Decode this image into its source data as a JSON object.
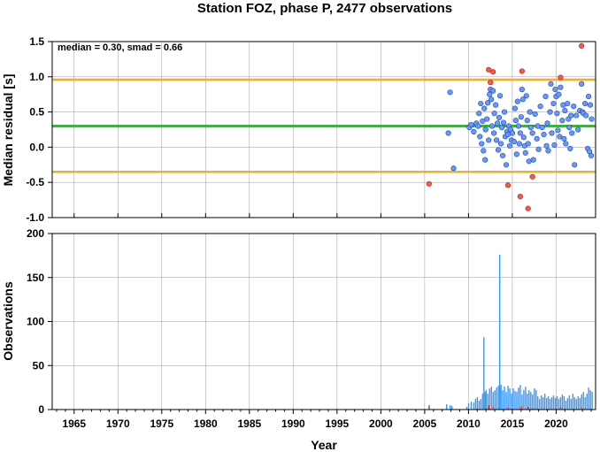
{
  "chart_data": {
    "title": "Station FOZ, phase P, 2477 observations",
    "xlabel": "Year",
    "xlim": [
      1962.5,
      2024.5
    ],
    "xticks": [
      1965,
      1970,
      1975,
      1980,
      1985,
      1990,
      1995,
      2000,
      2005,
      2010,
      2015,
      2020
    ],
    "grid": true,
    "colors": {
      "inlier": "#6699ff",
      "outlier": "#ff5544",
      "median": "#00dd00",
      "bounds": "#ffaa22",
      "bars": "#3399ff",
      "bars_outlier": "#ff3333"
    },
    "panels": [
      {
        "type": "scatter",
        "ylabel": "Median residual [s]",
        "ylim": [
          -1.0,
          1.5
        ],
        "yticks": [
          "-1.0",
          "-0.5",
          "0.0",
          "0.5",
          "1.0",
          "1.5"
        ],
        "annotation": "median = 0.30, smad = 0.66",
        "median": 0.3,
        "bounds": [
          -0.35,
          0.96
        ],
        "inliers": [
          [
            2007.7,
            0.2
          ],
          [
            2007.9,
            0.78
          ],
          [
            2008.3,
            -0.3
          ],
          [
            2010.1,
            0.28
          ],
          [
            2010.3,
            0.32
          ],
          [
            2010.6,
            0.22
          ],
          [
            2010.9,
            0.34
          ],
          [
            2011.1,
            0.3
          ],
          [
            2011.2,
            0.48
          ],
          [
            2011.3,
            0.15
          ],
          [
            2011.4,
            0.62
          ],
          [
            2011.5,
            0.05
          ],
          [
            2011.6,
            0.37
          ],
          [
            2011.7,
            -0.05
          ],
          [
            2011.8,
            0.55
          ],
          [
            2011.9,
            -0.18
          ],
          [
            2011.95,
            0.25
          ],
          [
            2012.1,
            0.4
          ],
          [
            2012.2,
            0.63
          ],
          [
            2012.3,
            0.1
          ],
          [
            2012.4,
            0.75
          ],
          [
            2012.5,
            0.82
          ],
          [
            2012.6,
            0.68
          ],
          [
            2012.7,
            0.3
          ],
          [
            2012.8,
            0.8
          ],
          [
            2012.9,
            0.2
          ],
          [
            2012.95,
            0.48
          ],
          [
            2013.1,
            0.6
          ],
          [
            2013.2,
            0.1
          ],
          [
            2013.3,
            0.34
          ],
          [
            2013.4,
            -0.04
          ],
          [
            2013.5,
            0.42
          ],
          [
            2013.6,
            0.73
          ],
          [
            2013.7,
            0.05
          ],
          [
            2013.8,
            0.28
          ],
          [
            2013.9,
            -0.12
          ],
          [
            2014.0,
            0.35
          ],
          [
            2014.1,
            0.5
          ],
          [
            2014.2,
            0.15
          ],
          [
            2014.3,
            -0.25
          ],
          [
            2014.4,
            0.22
          ],
          [
            2014.5,
            0.18
          ],
          [
            2014.6,
            0.3
          ],
          [
            2014.7,
            0.02
          ],
          [
            2014.8,
            0.25
          ],
          [
            2014.9,
            0.1
          ],
          [
            2015.0,
            0.2
          ],
          [
            2015.2,
            0.08
          ],
          [
            2015.3,
            0.55
          ],
          [
            2015.4,
            0.38
          ],
          [
            2015.5,
            -0.1
          ],
          [
            2015.6,
            0.65
          ],
          [
            2015.7,
            0.3
          ],
          [
            2015.8,
            0.05
          ],
          [
            2015.9,
            0.2
          ],
          [
            2016.0,
            0.43
          ],
          [
            2016.1,
            0.82
          ],
          [
            2016.2,
            0.68
          ],
          [
            2016.3,
            0.14
          ],
          [
            2016.4,
            0.02
          ],
          [
            2016.5,
            -0.08
          ],
          [
            2016.6,
            0.73
          ],
          [
            2016.7,
            0.38
          ],
          [
            2016.8,
            0.05
          ],
          [
            2016.9,
            -0.2
          ],
          [
            2017.0,
            0.5
          ],
          [
            2017.1,
            0.28
          ],
          [
            2017.3,
            0.2
          ],
          [
            2017.4,
            -0.18
          ],
          [
            2017.6,
            0.47
          ],
          [
            2017.8,
            0.12
          ],
          [
            2017.9,
            0.3
          ],
          [
            2018.0,
            -0.03
          ],
          [
            2018.2,
            0.58
          ],
          [
            2018.4,
            0.28
          ],
          [
            2018.6,
            0.18
          ],
          [
            2018.8,
            0.72
          ],
          [
            2018.9,
            0.02
          ],
          [
            2019.0,
            0.34
          ],
          [
            2019.1,
            -0.05
          ],
          [
            2019.3,
            0.5
          ],
          [
            2019.4,
            0.9
          ],
          [
            2019.5,
            0.2
          ],
          [
            2019.7,
            0.62
          ],
          [
            2019.8,
            0.03
          ],
          [
            2019.9,
            0.82
          ],
          [
            2020.0,
            0.72
          ],
          [
            2020.1,
            0.48
          ],
          [
            2020.2,
            0.24
          ],
          [
            2020.3,
            0.75
          ],
          [
            2020.4,
            0.15
          ],
          [
            2020.5,
            0.85
          ],
          [
            2020.7,
            0.38
          ],
          [
            2020.8,
            0.6
          ],
          [
            2020.9,
            0.12
          ],
          [
            2021.0,
            0.52
          ],
          [
            2021.1,
            0.05
          ],
          [
            2021.3,
            0.62
          ],
          [
            2021.4,
            0.4
          ],
          [
            2021.5,
            0.28
          ],
          [
            2021.6,
            -0.02
          ],
          [
            2021.7,
            0.45
          ],
          [
            2021.8,
            0.2
          ],
          [
            2022.0,
            0.58
          ],
          [
            2022.1,
            -0.25
          ],
          [
            2022.3,
            0.45
          ],
          [
            2022.5,
            0.25
          ],
          [
            2022.7,
            0.52
          ],
          [
            2022.9,
            0.9
          ],
          [
            2023.0,
            0.5
          ],
          [
            2023.1,
            0.48
          ],
          [
            2023.3,
            0.62
          ],
          [
            2023.4,
            0.45
          ],
          [
            2023.6,
            -0.02
          ],
          [
            2023.7,
            0.72
          ],
          [
            2023.8,
            -0.06
          ],
          [
            2023.9,
            0.6
          ],
          [
            2024.0,
            -0.12
          ],
          [
            2024.05,
            0.4
          ]
        ],
        "outliers": [
          [
            2005.5,
            -0.52
          ],
          [
            2012.3,
            1.1
          ],
          [
            2012.5,
            0.92
          ],
          [
            2012.8,
            1.07
          ],
          [
            2014.5,
            -0.54
          ],
          [
            2015.9,
            -0.7
          ],
          [
            2016.1,
            1.08
          ],
          [
            2016.8,
            -0.87
          ],
          [
            2017.3,
            -0.42
          ],
          [
            2020.5,
            0.99
          ],
          [
            2022.9,
            1.44
          ]
        ]
      },
      {
        "type": "bar",
        "ylabel": "Observations",
        "ylim": [
          0,
          200
        ],
        "yticks": [
          "0",
          "50",
          "100",
          "150",
          "200"
        ],
        "bars": [
          [
            2005.5,
            5
          ],
          [
            2007.5,
            6
          ],
          [
            2007.9,
            5
          ],
          [
            2008.1,
            4
          ],
          [
            2009.8,
            3
          ],
          [
            2010.0,
            7
          ],
          [
            2010.3,
            9
          ],
          [
            2010.6,
            8
          ],
          [
            2010.8,
            12
          ],
          [
            2011.0,
            14
          ],
          [
            2011.2,
            10
          ],
          [
            2011.4,
            12
          ],
          [
            2011.6,
            18
          ],
          [
            2011.75,
            82
          ],
          [
            2011.9,
            20
          ],
          [
            2012.0,
            22
          ],
          [
            2012.2,
            18
          ],
          [
            2012.4,
            24
          ],
          [
            2012.6,
            26
          ],
          [
            2012.8,
            20
          ],
          [
            2013.0,
            22
          ],
          [
            2013.2,
            25
          ],
          [
            2013.4,
            27
          ],
          [
            2013.55,
            176
          ],
          [
            2013.7,
            28
          ],
          [
            2013.9,
            22
          ],
          [
            2014.1,
            26
          ],
          [
            2014.3,
            20
          ],
          [
            2014.5,
            27
          ],
          [
            2014.7,
            24
          ],
          [
            2014.9,
            18
          ],
          [
            2015.1,
            24
          ],
          [
            2015.3,
            21
          ],
          [
            2015.5,
            20
          ],
          [
            2015.7,
            25
          ],
          [
            2015.9,
            28
          ],
          [
            2016.1,
            17
          ],
          [
            2016.3,
            22
          ],
          [
            2016.5,
            26
          ],
          [
            2016.7,
            18
          ],
          [
            2016.9,
            22
          ],
          [
            2017.1,
            20
          ],
          [
            2017.3,
            17
          ],
          [
            2017.5,
            24
          ],
          [
            2017.7,
            22
          ],
          [
            2017.9,
            15
          ],
          [
            2018.1,
            12
          ],
          [
            2018.3,
            16
          ],
          [
            2018.5,
            14
          ],
          [
            2018.7,
            18
          ],
          [
            2018.9,
            13
          ],
          [
            2019.1,
            15
          ],
          [
            2019.3,
            12
          ],
          [
            2019.5,
            14
          ],
          [
            2019.7,
            16
          ],
          [
            2019.9,
            13
          ],
          [
            2020.1,
            15
          ],
          [
            2020.3,
            12
          ],
          [
            2020.5,
            14
          ],
          [
            2020.7,
            17
          ],
          [
            2020.9,
            15
          ],
          [
            2021.1,
            10
          ],
          [
            2021.3,
            13
          ],
          [
            2021.5,
            16
          ],
          [
            2021.7,
            12
          ],
          [
            2021.9,
            18
          ],
          [
            2022.1,
            14
          ],
          [
            2022.3,
            12
          ],
          [
            2022.5,
            15
          ],
          [
            2022.7,
            13
          ],
          [
            2022.9,
            17
          ],
          [
            2023.1,
            20
          ],
          [
            2023.3,
            14
          ],
          [
            2023.5,
            18
          ],
          [
            2023.7,
            25
          ],
          [
            2023.9,
            22
          ],
          [
            2024.1,
            20
          ]
        ],
        "outlier_bars": [
          [
            2005.5,
            4
          ],
          [
            2012.3,
            5
          ],
          [
            2012.8,
            4
          ],
          [
            2014.5,
            3
          ],
          [
            2015.9,
            3
          ],
          [
            2016.1,
            4
          ],
          [
            2016.8,
            3
          ],
          [
            2017.3,
            2
          ],
          [
            2020.5,
            3
          ],
          [
            2022.9,
            3
          ]
        ]
      }
    ]
  }
}
